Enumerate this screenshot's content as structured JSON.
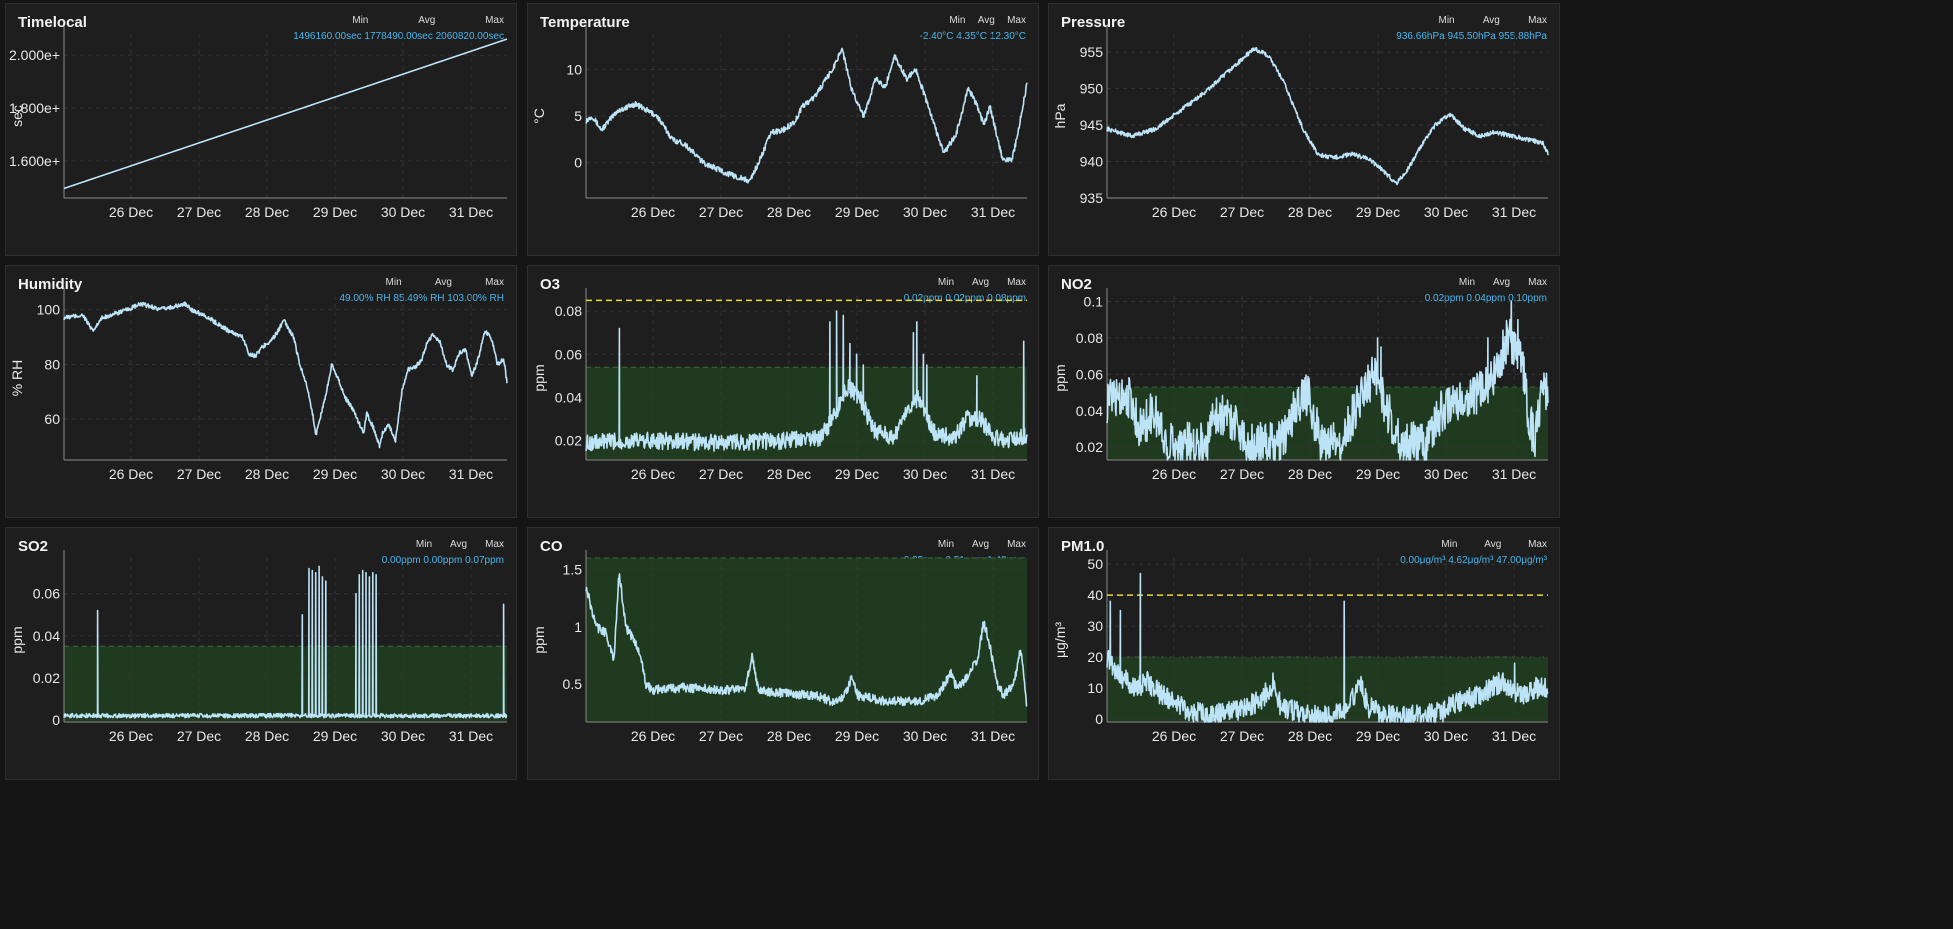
{
  "colors": {
    "line": "#bde3f7",
    "zone": "#1f3a1f",
    "threshold": "#e8d83c",
    "stat": "#49b7ef",
    "grid": "#343434"
  },
  "date_labels": [
    "26 Dec",
    "27 Dec",
    "28 Dec",
    "29 Dec",
    "30 Dec",
    "31 Dec"
  ],
  "chart_data": [
    {
      "id": "timelocal",
      "type": "line",
      "title": "Timelocal",
      "ylabel": "sec",
      "stats": {
        "min_label": "Min",
        "avg_label": "Avg",
        "max_label": "Max",
        "min": "1496160.00sec",
        "avg": "1778490.00sec",
        "max": "2060820.00sec"
      },
      "ylim": [
        1460000,
        2080000
      ],
      "ticks": [
        1600000,
        1800000,
        2000000
      ],
      "tick_labels": [
        "1.600e+",
        "1.800e+",
        "2.000e+"
      ],
      "anchors": [
        [
          0,
          1496160
        ],
        [
          6.6,
          2060820
        ]
      ],
      "noise": 0
    },
    {
      "id": "temperature",
      "type": "line",
      "title": "Temperature",
      "ylabel": "°C",
      "stats": {
        "min_label": "Min",
        "avg_label": "Avg",
        "max_label": "Max",
        "min": "-2.40°C",
        "avg": "4.35°C",
        "max": "12.30°C"
      },
      "ylim": [
        -3.8,
        13.8
      ],
      "ticks": [
        0,
        5,
        10
      ],
      "tick_labels": [
        "0",
        "5",
        "10"
      ],
      "anchors": [
        [
          0,
          4.5
        ],
        [
          0.1,
          5
        ],
        [
          0.25,
          3.5
        ],
        [
          0.5,
          5.5
        ],
        [
          0.8,
          6.3
        ],
        [
          1.15,
          5
        ],
        [
          1.4,
          2.5
        ],
        [
          1.6,
          2
        ],
        [
          1.9,
          0
        ],
        [
          2.3,
          -1.2
        ],
        [
          2.65,
          -2
        ],
        [
          2.8,
          0
        ],
        [
          3.0,
          3.2
        ],
        [
          3.2,
          3.5
        ],
        [
          3.4,
          4.5
        ],
        [
          3.5,
          6
        ],
        [
          3.7,
          7
        ],
        [
          4.0,
          10
        ],
        [
          4.15,
          12.3
        ],
        [
          4.3,
          8
        ],
        [
          4.5,
          5
        ],
        [
          4.7,
          9
        ],
        [
          4.85,
          8
        ],
        [
          5.0,
          11.5
        ],
        [
          5.2,
          9
        ],
        [
          5.35,
          10
        ],
        [
          5.5,
          7
        ],
        [
          5.7,
          3
        ],
        [
          5.8,
          1
        ],
        [
          6.0,
          3
        ],
        [
          6.2,
          8
        ],
        [
          6.35,
          6
        ],
        [
          6.45,
          4
        ],
        [
          6.55,
          6
        ],
        [
          6.75,
          0.5
        ],
        [
          6.9,
          0.2
        ],
        [
          7.0,
          3
        ],
        [
          7.15,
          8.5
        ]
      ],
      "noise": 0.3
    },
    {
      "id": "pressure",
      "type": "line",
      "title": "Pressure",
      "ylabel": "hPa",
      "stats": {
        "min_label": "Min",
        "avg_label": "Avg",
        "max_label": "Max",
        "min": "936.66hPa",
        "avg": "945.50hPa",
        "max": "955.88hPa"
      },
      "ylim": [
        935,
        957.5
      ],
      "ticks": [
        935,
        940,
        945,
        950,
        955
      ],
      "tick_labels": [
        "935",
        "940",
        "945",
        "950",
        "955"
      ],
      "anchors": [
        [
          0,
          944.5
        ],
        [
          0.5,
          943.5
        ],
        [
          1.0,
          944.5
        ],
        [
          1.5,
          947
        ],
        [
          2.0,
          949.5
        ],
        [
          2.5,
          952.5
        ],
        [
          3.0,
          955.5
        ],
        [
          3.3,
          954.5
        ],
        [
          3.6,
          951
        ],
        [
          4.0,
          944.5
        ],
        [
          4.3,
          941
        ],
        [
          4.6,
          940.5
        ],
        [
          5.0,
          941
        ],
        [
          5.3,
          940.5
        ],
        [
          5.6,
          939
        ],
        [
          5.9,
          937
        ],
        [
          6.1,
          938.5
        ],
        [
          6.4,
          942
        ],
        [
          6.7,
          945
        ],
        [
          7.0,
          946.5
        ],
        [
          7.3,
          944.5
        ],
        [
          7.6,
          943.5
        ],
        [
          7.9,
          944
        ],
        [
          8.3,
          943.5
        ],
        [
          8.6,
          943
        ],
        [
          8.9,
          942.5
        ],
        [
          9.0,
          941
        ]
      ],
      "noise": 0.3
    },
    {
      "id": "humidity",
      "type": "line",
      "title": "Humidity",
      "ylabel": "% RH",
      "stats": {
        "min_label": "Min",
        "avg_label": "Avg",
        "max_label": "Max",
        "min": "49.00% RH",
        "avg": "85.49% RH",
        "max": "103.00% RH"
      },
      "ylim": [
        45,
        105
      ],
      "ticks": [
        60,
        80,
        100
      ],
      "tick_labels": [
        "60",
        "80",
        "100"
      ],
      "anchors": [
        [
          0,
          97
        ],
        [
          0.3,
          98
        ],
        [
          0.45,
          92
        ],
        [
          0.6,
          97
        ],
        [
          1.0,
          100
        ],
        [
          1.2,
          102
        ],
        [
          1.4,
          101
        ],
        [
          1.5,
          100
        ],
        [
          1.7,
          101
        ],
        [
          1.9,
          102
        ],
        [
          2.0,
          100
        ],
        [
          2.2,
          98
        ],
        [
          2.4,
          95
        ],
        [
          2.6,
          92
        ],
        [
          2.8,
          90
        ],
        [
          2.9,
          84
        ],
        [
          3.0,
          83
        ],
        [
          3.1,
          86
        ],
        [
          3.3,
          90
        ],
        [
          3.45,
          96
        ],
        [
          3.6,
          90
        ],
        [
          3.7,
          80
        ],
        [
          3.8,
          73
        ],
        [
          3.9,
          62
        ],
        [
          3.95,
          54
        ],
        [
          4.1,
          68
        ],
        [
          4.2,
          80
        ],
        [
          4.3,
          75
        ],
        [
          4.4,
          68
        ],
        [
          4.5,
          65
        ],
        [
          4.6,
          60
        ],
        [
          4.7,
          55
        ],
        [
          4.75,
          62
        ],
        [
          4.85,
          57
        ],
        [
          4.95,
          50
        ],
        [
          5.0,
          55
        ],
        [
          5.1,
          58
        ],
        [
          5.2,
          52
        ],
        [
          5.3,
          70
        ],
        [
          5.4,
          78
        ],
        [
          5.5,
          79
        ],
        [
          5.6,
          81
        ],
        [
          5.7,
          88
        ],
        [
          5.8,
          91
        ],
        [
          5.9,
          88
        ],
        [
          6.0,
          80
        ],
        [
          6.1,
          78
        ],
        [
          6.2,
          84
        ],
        [
          6.3,
          85
        ],
        [
          6.4,
          76
        ],
        [
          6.5,
          82
        ],
        [
          6.6,
          92
        ],
        [
          6.7,
          90
        ],
        [
          6.8,
          80
        ],
        [
          6.9,
          82
        ],
        [
          6.95,
          73
        ]
      ],
      "noise": 0.8
    },
    {
      "id": "o3",
      "type": "line",
      "title": "O3",
      "ylabel": "ppm",
      "stats": {
        "min_label": "Min",
        "avg_label": "Avg",
        "max_label": "Max",
        "min": "0.02ppm",
        "avg": "0.02ppm",
        "max": "0.08ppm"
      },
      "ylim": [
        0.011,
        0.087
      ],
      "ticks": [
        0.02,
        0.04,
        0.06,
        0.08
      ],
      "tick_labels": [
        "0.02",
        "0.04",
        "0.06",
        "0.08"
      ],
      "zone": [
        0.011,
        0.054
      ],
      "threshold": 0.085,
      "anchors": [
        [
          0,
          0.019
        ],
        [
          1.0,
          0.02
        ],
        [
          2.0,
          0.019
        ],
        [
          3.0,
          0.02
        ],
        [
          3.5,
          0.021
        ],
        [
          3.7,
          0.03
        ],
        [
          3.9,
          0.045
        ],
        [
          4.1,
          0.04
        ],
        [
          4.3,
          0.025
        ],
        [
          4.6,
          0.021
        ],
        [
          4.8,
          0.035
        ],
        [
          5.0,
          0.04
        ],
        [
          5.2,
          0.024
        ],
        [
          5.5,
          0.021
        ],
        [
          5.7,
          0.03
        ],
        [
          5.9,
          0.03
        ],
        [
          6.1,
          0.022
        ],
        [
          6.3,
          0.02
        ],
        [
          6.5,
          0.022
        ]
      ],
      "noise": 0.004,
      "spikes": [
        [
          0.5,
          0.072
        ],
        [
          3.65,
          0.075
        ],
        [
          3.75,
          0.08
        ],
        [
          3.85,
          0.078
        ],
        [
          3.95,
          0.065
        ],
        [
          4.05,
          0.06
        ],
        [
          4.15,
          0.055
        ],
        [
          4.9,
          0.07
        ],
        [
          4.95,
          0.075
        ],
        [
          5.05,
          0.06
        ],
        [
          5.1,
          0.055
        ],
        [
          5.85,
          0.05
        ],
        [
          6.55,
          0.066
        ]
      ]
    },
    {
      "id": "no2",
      "type": "line",
      "title": "NO2",
      "ylabel": "ppm",
      "stats": {
        "min_label": "Min",
        "avg_label": "Avg",
        "max_label": "Max",
        "min": "0.02ppm",
        "avg": "0.04ppm",
        "max": "0.10ppm"
      },
      "ylim": [
        0.013,
        0.103
      ],
      "ticks": [
        0.02,
        0.04,
        0.06,
        0.08,
        0.1
      ],
      "tick_labels": [
        "0.02",
        "0.04",
        "0.06",
        "0.08",
        "0.1"
      ],
      "zone": [
        0.013,
        0.053
      ],
      "anchors": [
        [
          0,
          0.045
        ],
        [
          0.3,
          0.05
        ],
        [
          0.5,
          0.03
        ],
        [
          0.7,
          0.04
        ],
        [
          0.9,
          0.022
        ],
        [
          1.5,
          0.022
        ],
        [
          1.6,
          0.04
        ],
        [
          1.9,
          0.035
        ],
        [
          2.1,
          0.022
        ],
        [
          2.6,
          0.022
        ],
        [
          2.8,
          0.04
        ],
        [
          3.0,
          0.05
        ],
        [
          3.2,
          0.022
        ],
        [
          3.5,
          0.022
        ],
        [
          3.7,
          0.04
        ],
        [
          4.0,
          0.06
        ],
        [
          4.2,
          0.04
        ],
        [
          4.4,
          0.022
        ],
        [
          4.8,
          0.022
        ],
        [
          5.0,
          0.04
        ],
        [
          5.3,
          0.045
        ],
        [
          5.6,
          0.05
        ],
        [
          5.8,
          0.06
        ],
        [
          6.0,
          0.08
        ],
        [
          6.2,
          0.07
        ],
        [
          6.3,
          0.04
        ],
        [
          6.4,
          0.022
        ],
        [
          6.5,
          0.05
        ],
        [
          6.6,
          0.05
        ]
      ],
      "noise": 0.012,
      "spikes": [
        [
          4.1,
          0.075
        ],
        [
          6.05,
          0.1
        ],
        [
          6.15,
          0.09
        ],
        [
          5.7,
          0.08
        ],
        [
          4.05,
          0.08
        ]
      ]
    },
    {
      "id": "so2",
      "type": "line",
      "title": "SO2",
      "ylabel": "ppm",
      "stats": {
        "min_label": "Min",
        "avg_label": "Avg",
        "max_label": "Max",
        "min": "0.00ppm",
        "avg": "0.00ppm",
        "max": "0.07ppm"
      },
      "ylim": [
        -0.001,
        0.077
      ],
      "ticks": [
        0,
        0.02,
        0.04,
        0.06
      ],
      "tick_labels": [
        "0",
        "0.02",
        "0.04",
        "0.06"
      ],
      "zone": [
        -0.001,
        0.035
      ],
      "anchors": [
        [
          0,
          0.002
        ],
        [
          6.6,
          0.002
        ]
      ],
      "noise": 0.001,
      "spikes": [
        [
          0.5,
          0.052
        ],
        [
          3.55,
          0.05
        ],
        [
          3.65,
          0.072
        ],
        [
          3.7,
          0.071
        ],
        [
          3.75,
          0.07
        ],
        [
          3.8,
          0.073
        ],
        [
          3.85,
          0.068
        ],
        [
          3.9,
          0.066
        ],
        [
          4.35,
          0.06
        ],
        [
          4.4,
          0.069
        ],
        [
          4.45,
          0.071
        ],
        [
          4.5,
          0.07
        ],
        [
          4.55,
          0.068
        ],
        [
          4.6,
          0.07
        ],
        [
          4.65,
          0.069
        ],
        [
          6.55,
          0.055
        ]
      ]
    },
    {
      "id": "co",
      "type": "line",
      "title": "CO",
      "ylabel": "ppm",
      "stats": {
        "min_label": "Min",
        "avg_label": "Avg",
        "max_label": "Max",
        "min": "0.25ppm",
        "avg": "0.51ppm",
        "max": "1.48ppm"
      },
      "ylim": [
        0.17,
        1.6
      ],
      "ticks": [
        0.5,
        1,
        1.5
      ],
      "tick_labels": [
        "0.5",
        "1",
        "1.5"
      ],
      "zone": [
        0.17,
        1.6
      ],
      "anchors": [
        [
          0,
          1.35
        ],
        [
          0.15,
          1.0
        ],
        [
          0.3,
          0.95
        ],
        [
          0.42,
          0.7
        ],
        [
          0.5,
          1.48
        ],
        [
          0.6,
          1.0
        ],
        [
          0.8,
          0.8
        ],
        [
          0.9,
          0.5
        ],
        [
          1.0,
          0.45
        ],
        [
          1.5,
          0.47
        ],
        [
          2.0,
          0.45
        ],
        [
          2.4,
          0.45
        ],
        [
          2.5,
          0.75
        ],
        [
          2.6,
          0.45
        ],
        [
          3.0,
          0.42
        ],
        [
          3.5,
          0.4
        ],
        [
          3.7,
          0.35
        ],
        [
          3.9,
          0.4
        ],
        [
          4.0,
          0.55
        ],
        [
          4.1,
          0.4
        ],
        [
          4.5,
          0.35
        ],
        [
          5.0,
          0.35
        ],
        [
          5.3,
          0.4
        ],
        [
          5.5,
          0.6
        ],
        [
          5.6,
          0.45
        ],
        [
          5.9,
          0.7
        ],
        [
          6.0,
          1.05
        ],
        [
          6.1,
          0.8
        ],
        [
          6.2,
          0.5
        ],
        [
          6.3,
          0.4
        ],
        [
          6.45,
          0.5
        ],
        [
          6.55,
          0.8
        ],
        [
          6.6,
          0.6
        ],
        [
          6.65,
          0.3
        ]
      ],
      "noise": 0.04
    },
    {
      "id": "pm1",
      "type": "line",
      "title": "PM1.0",
      "ylabel": "μg/m³",
      "stats": {
        "min_label": "Min",
        "avg_label": "Avg",
        "max_label": "Max",
        "min": "0.00μg/m³",
        "avg": "4.62μg/m³",
        "max": "47.00μg/m³"
      },
      "ylim": [
        -1,
        52
      ],
      "ticks": [
        0,
        10,
        20,
        30,
        40,
        50
      ],
      "tick_labels": [
        "0",
        "10",
        "20",
        "30",
        "40",
        "50"
      ],
      "zone": [
        -1,
        20
      ],
      "threshold": 40,
      "anchors": [
        [
          0,
          20
        ],
        [
          0.2,
          14
        ],
        [
          0.4,
          10
        ],
        [
          0.6,
          12
        ],
        [
          0.8,
          8
        ],
        [
          1.0,
          6
        ],
        [
          1.2,
          3
        ],
        [
          1.5,
          1
        ],
        [
          2.0,
          3
        ],
        [
          2.3,
          6
        ],
        [
          2.5,
          12
        ],
        [
          2.6,
          4
        ],
        [
          3.0,
          1
        ],
        [
          3.3,
          1
        ],
        [
          3.6,
          3
        ],
        [
          3.8,
          12
        ],
        [
          3.9,
          4
        ],
        [
          4.2,
          1
        ],
        [
          4.6,
          1
        ],
        [
          5.0,
          2
        ],
        [
          5.3,
          6
        ],
        [
          5.6,
          8
        ],
        [
          5.9,
          12
        ],
        [
          6.0,
          10
        ],
        [
          6.2,
          8
        ],
        [
          6.4,
          10
        ],
        [
          6.6,
          10
        ]
      ],
      "noise": 3.5,
      "spikes": [
        [
          0.05,
          38
        ],
        [
          0.2,
          35
        ],
        [
          0.5,
          47
        ],
        [
          3.55,
          38
        ],
        [
          6.1,
          18
        ]
      ]
    }
  ]
}
